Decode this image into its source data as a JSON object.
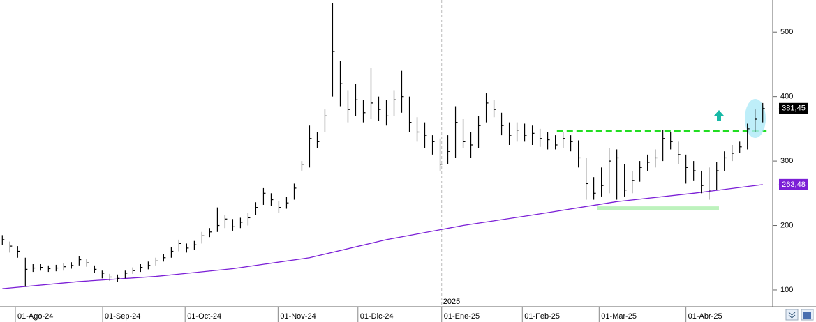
{
  "chart_data": {
    "type": "ohlc",
    "bar_color": "#000000",
    "xlim": [
      -0.3,
      100.3
    ],
    "ylim": [
      74,
      550
    ],
    "yticks": [
      100,
      200,
      300,
      400,
      500
    ],
    "grid": true,
    "xticks": [
      {
        "value": 1.7,
        "label": "01-Ago-24"
      },
      {
        "value": 13.06,
        "label": "01-Sep-24"
      },
      {
        "value": 23.8,
        "label": "01-Oct-24"
      },
      {
        "value": 35.9,
        "label": "01-Nov-24"
      },
      {
        "value": 46.3,
        "label": "01-Dic-24"
      },
      {
        "value": 57.2,
        "label": "01-Ene-25"
      },
      {
        "value": 67.7,
        "label": "01-Feb-25"
      },
      {
        "value": 77.7,
        "label": "01-Mar-25"
      },
      {
        "value": 89.0,
        "label": "01-Abr-25"
      }
    ],
    "year_marker": {
      "x": 57.2,
      "label": "2025"
    },
    "high": [
      185,
      175,
      168,
      150,
      140,
      140,
      138,
      139,
      141,
      143,
      152,
      148,
      138,
      130,
      125,
      124,
      130,
      135,
      140,
      144,
      150,
      156,
      166,
      178,
      172,
      176,
      190,
      196,
      228,
      216,
      210,
      212,
      220,
      236,
      258,
      250,
      238,
      244,
      265,
      300,
      355,
      345,
      380,
      545,
      455,
      410,
      420,
      395,
      445,
      400,
      395,
      410,
      440,
      400,
      368,
      360,
      340,
      335,
      340,
      385,
      365,
      345,
      370,
      405,
      395,
      375,
      360,
      360,
      358,
      355,
      350,
      345,
      340,
      345,
      340,
      332,
      305,
      275,
      290,
      320,
      318,
      295,
      285,
      300,
      310,
      318,
      348,
      345,
      330,
      310,
      300,
      285,
      290,
      298,
      315,
      325,
      330,
      358,
      380,
      390
    ],
    "low": [
      170,
      158,
      150,
      105,
      128,
      130,
      128,
      129,
      130,
      133,
      138,
      136,
      126,
      118,
      114,
      112,
      118,
      125,
      128,
      132,
      138,
      144,
      150,
      160,
      158,
      162,
      172,
      182,
      190,
      196,
      192,
      196,
      200,
      216,
      232,
      230,
      220,
      226,
      240,
      285,
      290,
      320,
      345,
      400,
      385,
      360,
      370,
      360,
      365,
      362,
      355,
      370,
      375,
      345,
      330,
      320,
      310,
      285,
      295,
      305,
      320,
      305,
      320,
      360,
      368,
      340,
      325,
      330,
      330,
      325,
      322,
      318,
      318,
      320,
      315,
      290,
      240,
      240,
      245,
      250,
      240,
      245,
      250,
      268,
      285,
      290,
      300,
      318,
      295,
      265,
      270,
      250,
      240,
      255,
      285,
      300,
      312,
      318,
      345,
      360
    ],
    "close": [
      178,
      168,
      160,
      132,
      134,
      135,
      133,
      134,
      136,
      138,
      147,
      142,
      132,
      126,
      120,
      118,
      126,
      130,
      135,
      138,
      145,
      150,
      160,
      172,
      165,
      170,
      184,
      190,
      200,
      210,
      198,
      205,
      212,
      228,
      250,
      240,
      228,
      235,
      258,
      295,
      335,
      330,
      370,
      470,
      420,
      380,
      395,
      375,
      390,
      380,
      370,
      395,
      400,
      360,
      345,
      340,
      330,
      295,
      315,
      360,
      330,
      325,
      355,
      390,
      380,
      355,
      340,
      348,
      340,
      343,
      335,
      333,
      325,
      335,
      330,
      305,
      265,
      250,
      262,
      300,
      305,
      255,
      270,
      290,
      298,
      305,
      335,
      330,
      310,
      290,
      285,
      262,
      255,
      285,
      305,
      312,
      322,
      350,
      365,
      381.45
    ],
    "ma": {
      "color": "#7b1fd6",
      "x": [
        0,
        10,
        20,
        30,
        40,
        50,
        60,
        70,
        80,
        90,
        99
      ],
      "values": [
        102,
        113,
        121,
        133,
        150,
        178,
        200,
        218,
        237,
        250,
        263.48
      ]
    },
    "levels": [
      {
        "value": 347,
        "from": 72.2,
        "to": 99.5,
        "color": "#22dd22",
        "dashed": true
      },
      {
        "value": 227,
        "from": 77.4,
        "to": 93.3,
        "color": "#bdf2bd",
        "dashed": false
      }
    ],
    "price_tags": [
      {
        "value": 381.45,
        "label": "381,45",
        "color": "#000000"
      },
      {
        "value": 263.48,
        "label": "263,48",
        "color": "#7b1fd6"
      }
    ]
  }
}
